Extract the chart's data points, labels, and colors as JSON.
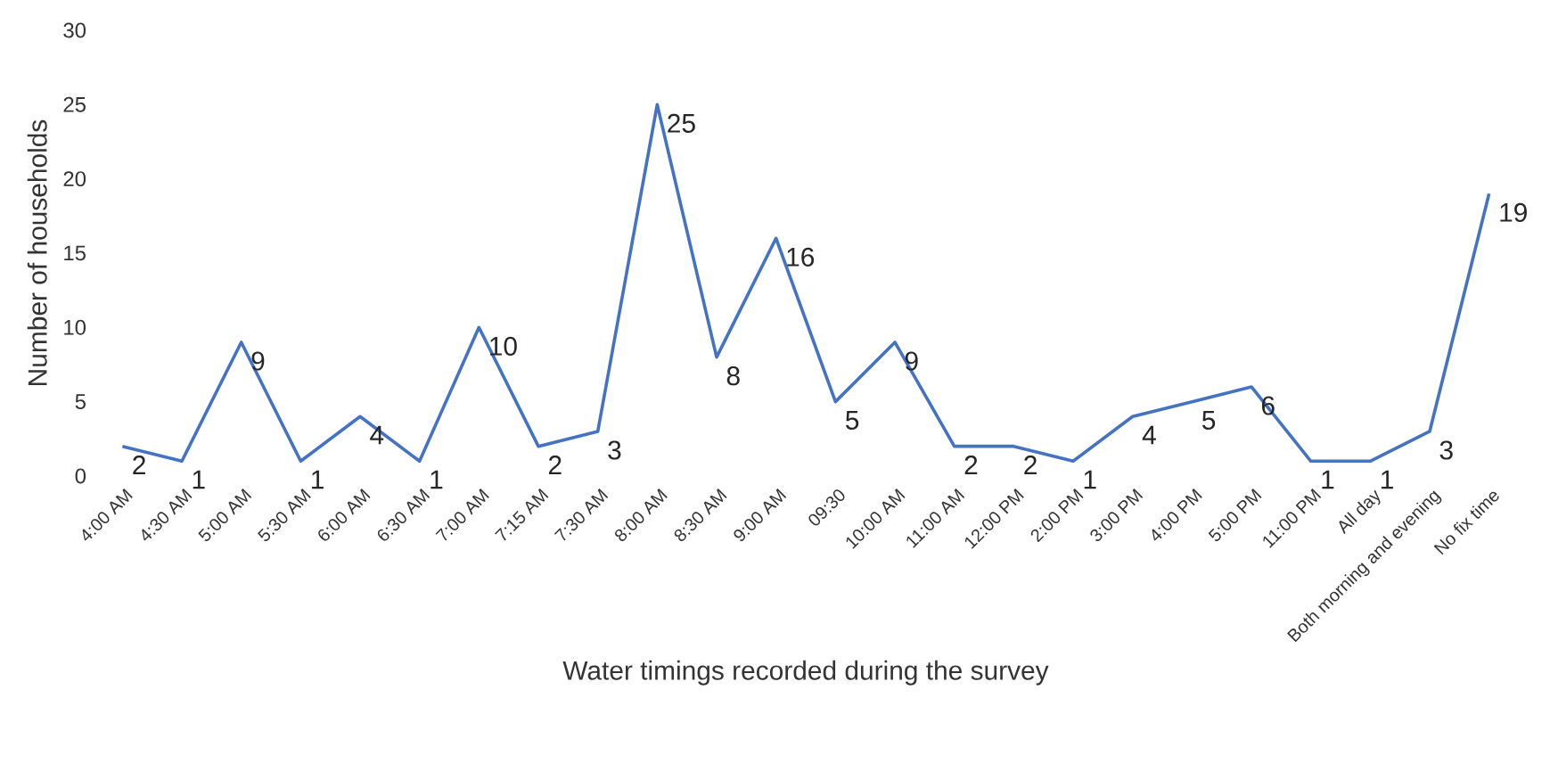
{
  "chart_data": {
    "type": "line",
    "xlabel": "Water timings recorded during the survey",
    "ylabel": "Number of households",
    "categories": [
      "4:00 AM",
      "4:30 AM",
      "5:00 AM",
      "5:30 AM",
      "6:00 AM",
      "6:30 AM",
      "7:00 AM",
      "7:15 AM",
      "7:30 AM",
      "8:00 AM",
      "8:30 AM",
      "9:00 AM",
      "09:30",
      "10:00 AM",
      "11:00 AM",
      "12:00 PM",
      "2:00 PM",
      "3:00 PM",
      "4:00 PM",
      "5:00 PM",
      "11:00 PM",
      "All day",
      "Both morning and evening",
      "No fix time"
    ],
    "values": [
      2,
      1,
      9,
      1,
      4,
      1,
      10,
      2,
      3,
      25,
      8,
      16,
      5,
      9,
      2,
      2,
      1,
      4,
      5,
      6,
      1,
      1,
      3,
      19
    ],
    "color": "#4472c4",
    "ylim": [
      0,
      30
    ],
    "yticks": [
      0,
      5,
      10,
      15,
      20,
      25,
      30
    ],
    "data_labels": true,
    "marker": "none",
    "line_style": "solid"
  }
}
